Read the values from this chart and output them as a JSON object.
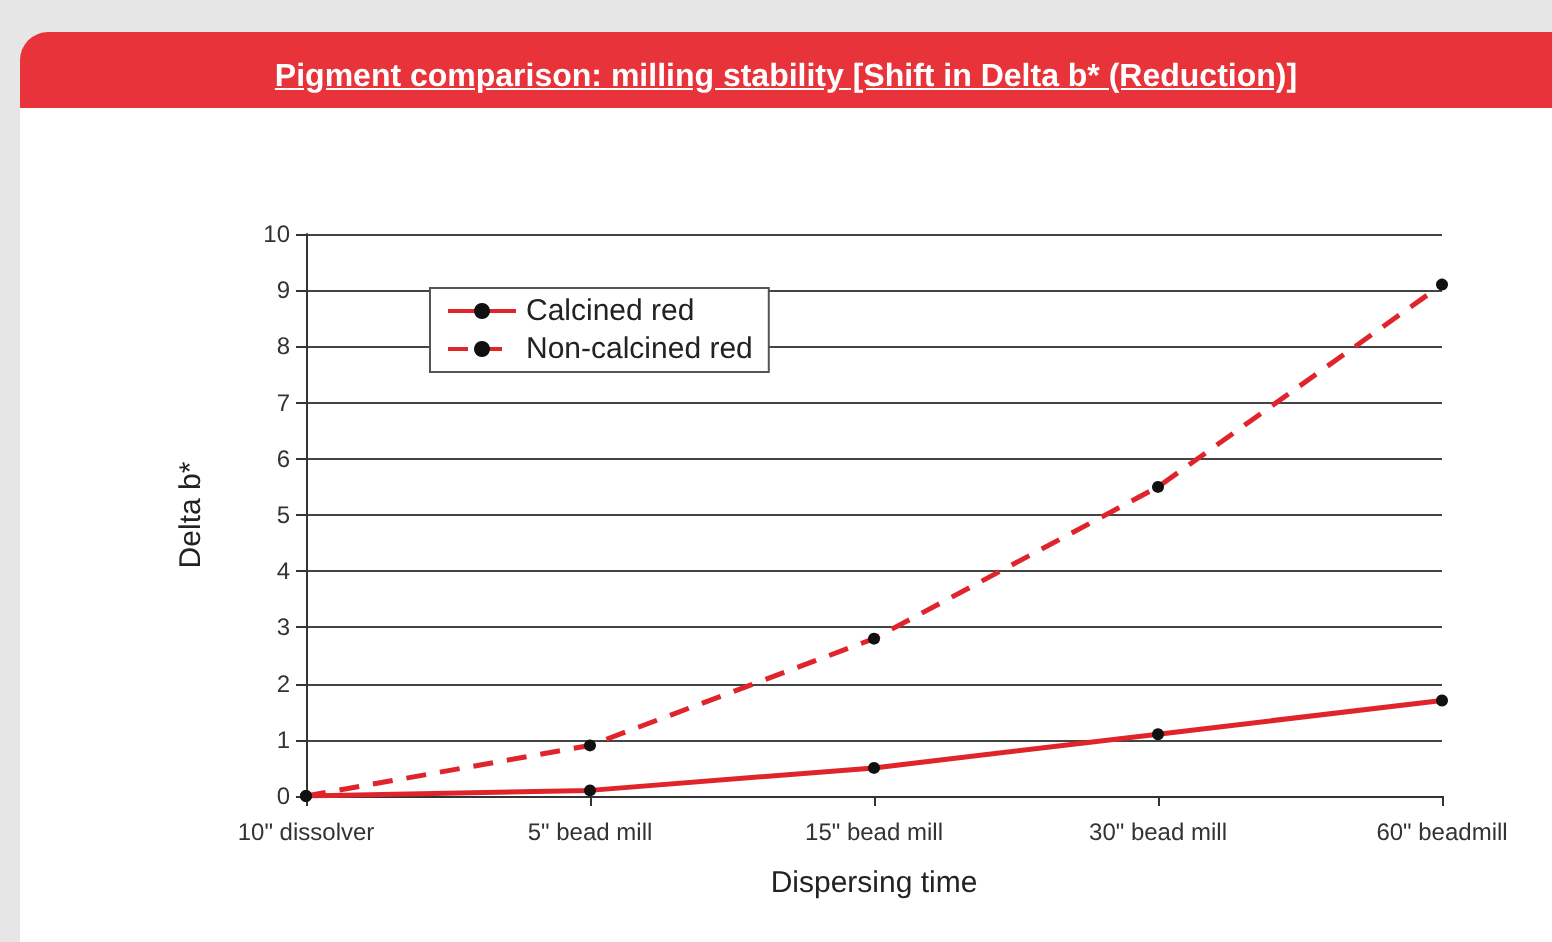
{
  "chart_data": {
    "type": "line",
    "title": "Pigment comparison: milling stability [Shift in Delta b* (Reduction)]",
    "xlabel": "Dispersing time",
    "ylabel": "Delta b*",
    "categories": [
      "10\" dissolver",
      "5\" bead mill",
      "15\" bead mill",
      "30\" bead mill",
      "60\" beadmill"
    ],
    "series": [
      {
        "name": "Calcined red",
        "color": "#e0242c",
        "line_style": "solid",
        "values": [
          0,
          0.1,
          0.5,
          1.1,
          1.7
        ]
      },
      {
        "name": "Non-calcined red",
        "color": "#e0242c",
        "line_style": "dashed",
        "values": [
          0,
          0.9,
          2.8,
          5.5,
          9.1
        ]
      }
    ],
    "ylim": [
      0,
      10
    ],
    "yticks": [
      0,
      1,
      2,
      3,
      4,
      5,
      6,
      7,
      8,
      9,
      10
    ],
    "grid": "y",
    "legend": "top left",
    "marker": "circle"
  }
}
